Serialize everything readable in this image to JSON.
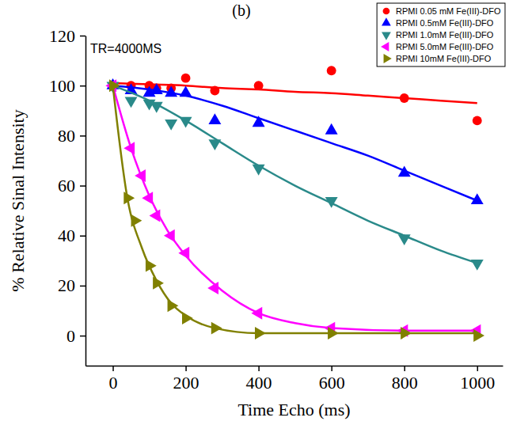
{
  "chart_data": {
    "type": "scatter",
    "title": "(b)",
    "annotations": [
      "TR=4000MS"
    ],
    "x_label": "Time Echo (ms)",
    "y_label": "% Relative Sinal Intensity",
    "xlim": [
      -75,
      1070
    ],
    "ylim": [
      -12,
      120
    ],
    "xticks": [
      0,
      200,
      400,
      600,
      800,
      1000
    ],
    "yticks": [
      0,
      20,
      40,
      60,
      80,
      100,
      120
    ],
    "grid": false,
    "legend": "upper right",
    "series": [
      {
        "name": "RPMI 0.05 mM Fe(III)-DFO",
        "color": "#ff0000",
        "marker": "circle",
        "line_style": "solid",
        "x": [
          0,
          50,
          100,
          120,
          160,
          200,
          280,
          400,
          600,
          800,
          1000
        ],
        "values": [
          100,
          100,
          100,
          99,
          99,
          103,
          98,
          100,
          106,
          95,
          86
        ],
        "fit": {
          "x": [
            0,
            100,
            200,
            300,
            400,
            500,
            600,
            700,
            800,
            900,
            1000
          ],
          "values": [
            101,
            100.5,
            100,
            99,
            98.5,
            97.5,
            97,
            96,
            95,
            94,
            93
          ]
        }
      },
      {
        "name": "RPMI 0.5mM Fe(III)-DFO",
        "color": "#0000ff",
        "marker": "triangle-up",
        "line_style": "solid",
        "x": [
          0,
          50,
          100,
          120,
          160,
          200,
          280,
          400,
          600,
          800,
          1000
        ],
        "values": [
          100,
          98,
          97,
          98,
          97,
          97,
          86,
          85,
          82,
          65,
          54
        ],
        "fit": {
          "x": [
            0,
            100,
            200,
            300,
            400,
            500,
            600,
            700,
            800,
            900,
            1000
          ],
          "values": [
            100,
            98.5,
            96,
            92,
            87,
            82,
            77,
            72,
            66,
            60,
            54
          ]
        }
      },
      {
        "name": "RPMI 1.0mM Fe(III)-DFO",
        "color": "#2a8a8a",
        "marker": "triangle-down",
        "line_style": "solid",
        "x": [
          0,
          50,
          100,
          120,
          160,
          200,
          280,
          400,
          600,
          800,
          1000
        ],
        "values": [
          100,
          94,
          93,
          92,
          85,
          86,
          77,
          67,
          54,
          39,
          29
        ],
        "fit": {
          "x": [
            0,
            100,
            200,
            300,
            400,
            500,
            600,
            700,
            800,
            900,
            1000
          ],
          "values": [
            100,
            94,
            86,
            77,
            68,
            60,
            53,
            46,
            40,
            34,
            29
          ]
        }
      },
      {
        "name": "RPMI 5.0mM Fe(III)-DFO",
        "color": "#ff00ff",
        "marker": "triangle-left",
        "line_style": "solid",
        "x": [
          0,
          50,
          80,
          100,
          120,
          160,
          200,
          280,
          400,
          600,
          800,
          1000
        ],
        "values": [
          100,
          75,
          64,
          55,
          48,
          40,
          33,
          19,
          9,
          3,
          2,
          2
        ],
        "fit": {
          "x": [
            0,
            50,
            100,
            150,
            200,
            300,
            400,
            500,
            600,
            800,
            1000
          ],
          "values": [
            100,
            75,
            56,
            42,
            32,
            18,
            9,
            5,
            3,
            2,
            2
          ]
        }
      },
      {
        "name": "RPMI 10mM Fe(III)-DFO",
        "color": "#808000",
        "marker": "triangle-right",
        "line_style": "solid",
        "x": [
          0,
          40,
          60,
          100,
          120,
          160,
          200,
          280,
          400,
          600,
          800,
          1000
        ],
        "values": [
          100,
          55,
          46,
          28,
          21,
          12,
          7,
          3,
          1,
          1,
          1,
          0
        ],
        "fit": {
          "x": [
            0,
            40,
            80,
            120,
            160,
            200,
            280,
            400,
            600,
            800,
            1000
          ],
          "values": [
            100,
            55,
            35,
            22,
            13,
            8,
            3,
            1,
            1,
            1,
            1
          ]
        }
      }
    ]
  }
}
